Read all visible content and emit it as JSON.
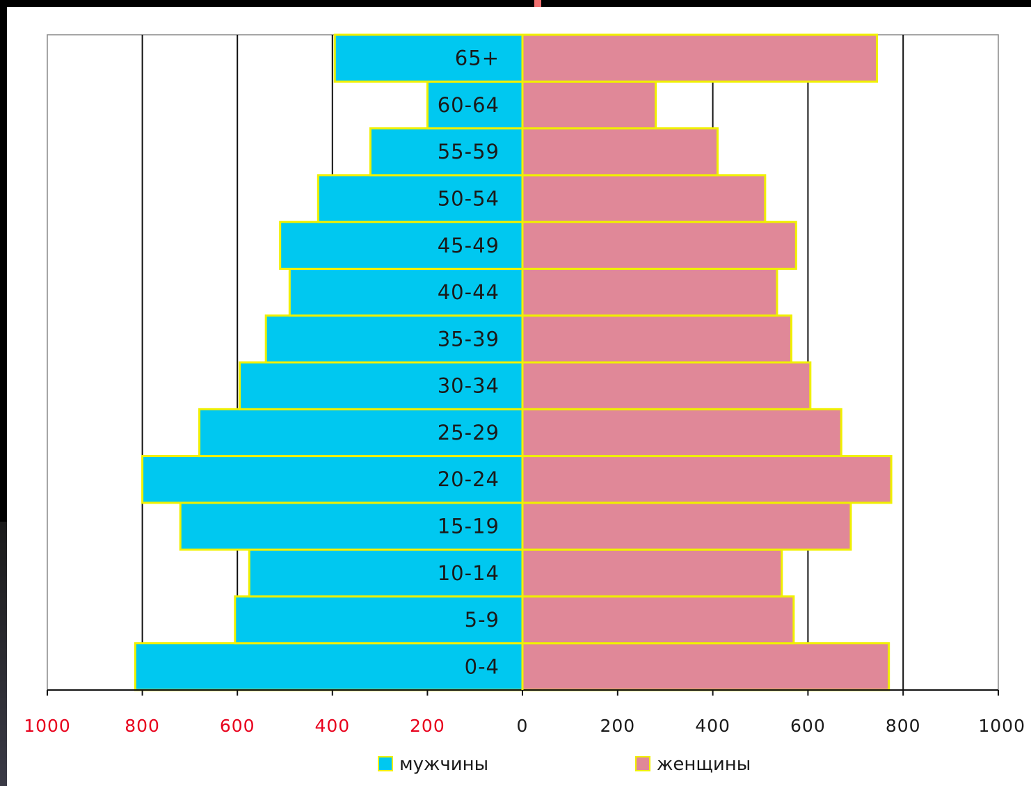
{
  "chart_data": {
    "type": "bar",
    "orientation": "horizontal-pyramid",
    "categories": [
      "0-4",
      "5-9",
      "10-14",
      "15-19",
      "20-24",
      "25-29",
      "30-34",
      "35-39",
      "40-44",
      "45-49",
      "50-54",
      "55-59",
      "60-64",
      "65+"
    ],
    "series": [
      {
        "name": "мужчины",
        "side": "left",
        "color": "#00c8f0",
        "values": [
          815,
          605,
          575,
          720,
          800,
          680,
          595,
          540,
          490,
          510,
          430,
          320,
          200,
          395
        ]
      },
      {
        "name": "женщины",
        "side": "right",
        "color": "#e08898",
        "values": [
          770,
          570,
          545,
          690,
          775,
          670,
          605,
          565,
          535,
          575,
          510,
          410,
          280,
          745
        ]
      }
    ],
    "xlim": [
      -1000,
      1000
    ],
    "x_ticks_left": [
      "1000",
      "800",
      "600",
      "400",
      "200"
    ],
    "x_ticks_right": [
      "0",
      "200",
      "400",
      "600",
      "800",
      "1000"
    ],
    "tick_label_color_left": "#e8001c",
    "tick_label_color_right": "#1a1a1a",
    "bar_border_color": "#f0f000",
    "gridlines": true,
    "legend_position": "bottom",
    "title": "",
    "xlabel": "",
    "ylabel": ""
  }
}
